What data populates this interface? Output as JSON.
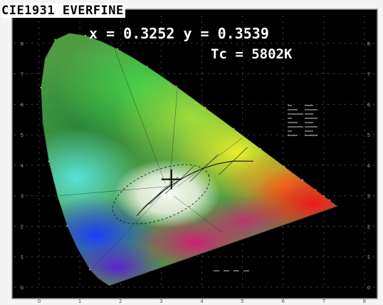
{
  "header": {
    "title": "CIE1931 EVERFINE",
    "xy_readout": "x = 0.3252 y = 0.3539",
    "cct_readout": "Tc = 5802K"
  },
  "colors": {
    "background": "#000000",
    "outer_margin": "#f4f4f4",
    "text": "#ffffff",
    "title_text": "#000000",
    "marker": "#000000"
  },
  "chart_data": {
    "type": "scatter",
    "title": "CIE1931 EVERFINE",
    "xlabel": "",
    "ylabel": "",
    "xlim": [
      0,
      0.8
    ],
    "ylim": [
      0,
      0.9
    ],
    "x_ticks": [
      "0",
      "1",
      "2",
      "3",
      "4",
      "5",
      "6",
      "7",
      "8"
    ],
    "y_ticks": [
      "0",
      "1",
      "2",
      "3",
      "4",
      "5",
      "6",
      "7",
      "8"
    ],
    "grid": true,
    "legend": "none",
    "series": [
      {
        "values": [
          {
            "x": 0.3252,
            "y": 0.3539
          }
        ]
      }
    ],
    "annotations": [
      "x = 0.3252 y = 0.3539",
      "Tc = 5802K"
    ]
  }
}
